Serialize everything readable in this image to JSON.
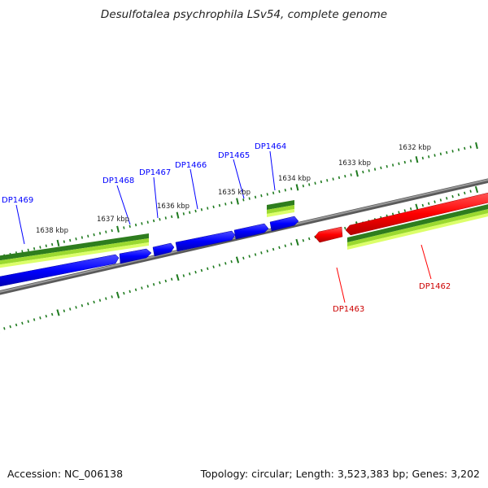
{
  "header": {
    "title": "Desulfotalea psychrophila LSv54, complete genome"
  },
  "footer": {
    "accession": "Accession: NC_006138",
    "topology": "Topology: circular; Length: 3,523,383 bp; Genes: 3,202"
  },
  "ticks": [
    {
      "label": "1632 kbp"
    },
    {
      "label": "1633 kbp"
    },
    {
      "label": "1634 kbp"
    },
    {
      "label": "1635 kbp"
    },
    {
      "label": "1636 kbp"
    },
    {
      "label": "1637 kbp"
    },
    {
      "label": "1638 kbp"
    }
  ],
  "genes": {
    "forward": [
      {
        "label": "DP1464"
      },
      {
        "label": "DP1465"
      },
      {
        "label": "DP1466"
      },
      {
        "label": "DP1467"
      },
      {
        "label": "DP1468"
      },
      {
        "label": "DP1469"
      }
    ],
    "reverse": [
      {
        "label": "DP1462"
      },
      {
        "label": "DP1463"
      }
    ]
  },
  "colors": {
    "forward_gene": "#0000ff",
    "reverse_gene": "#ff0000",
    "backbone": "#808080",
    "tick": "#1e7a1e",
    "feature_dark": "#2e7d1e",
    "feature_mid": "#7fd327",
    "feature_light": "#d9ff66"
  }
}
